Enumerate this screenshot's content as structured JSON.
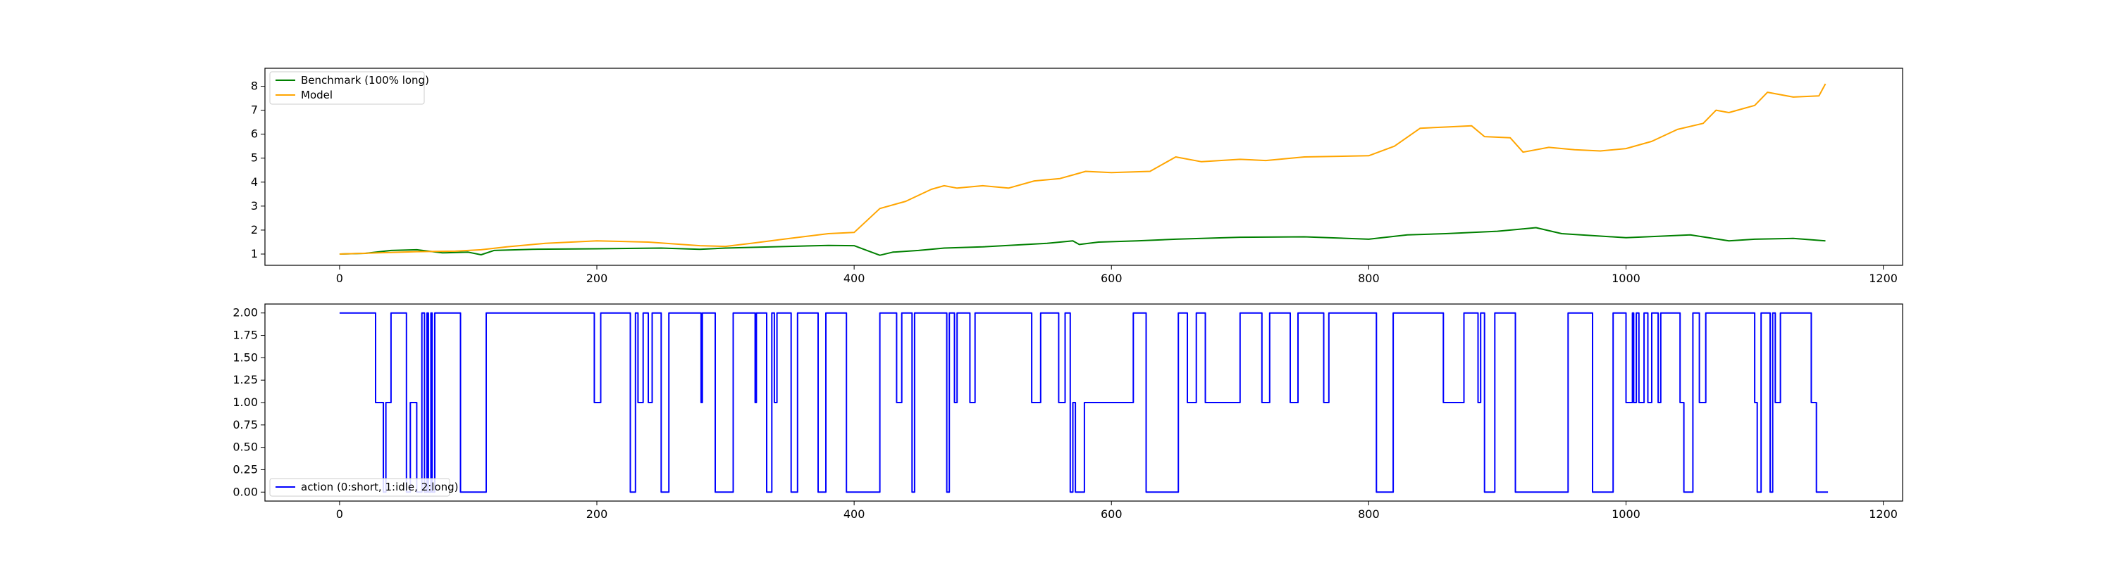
{
  "chart_data": [
    {
      "type": "line",
      "title": "",
      "xlabel": "",
      "ylabel": "",
      "xlim": [
        -58,
        1215
      ],
      "ylim": [
        0.53,
        8.75
      ],
      "xticks": [
        0,
        200,
        400,
        600,
        800,
        1000,
        1200
      ],
      "yticks": [
        1,
        2,
        3,
        4,
        5,
        6,
        7,
        8
      ],
      "grid": false,
      "legend_position": "upper-left",
      "series": [
        {
          "name": "Benchmark (100% long)",
          "color": "#008000",
          "points": [
            [
              0,
              1.0
            ],
            [
              20,
              1.03
            ],
            [
              40,
              1.15
            ],
            [
              60,
              1.18
            ],
            [
              80,
              1.05
            ],
            [
              100,
              1.08
            ],
            [
              110,
              0.97
            ],
            [
              120,
              1.15
            ],
            [
              150,
              1.2
            ],
            [
              200,
              1.22
            ],
            [
              250,
              1.25
            ],
            [
              280,
              1.2
            ],
            [
              300,
              1.25
            ],
            [
              320,
              1.28
            ],
            [
              350,
              1.32
            ],
            [
              380,
              1.36
            ],
            [
              400,
              1.35
            ],
            [
              410,
              1.15
            ],
            [
              420,
              0.95
            ],
            [
              430,
              1.08
            ],
            [
              450,
              1.15
            ],
            [
              470,
              1.25
            ],
            [
              500,
              1.3
            ],
            [
              550,
              1.45
            ],
            [
              570,
              1.55
            ],
            [
              575,
              1.4
            ],
            [
              590,
              1.5
            ],
            [
              620,
              1.55
            ],
            [
              650,
              1.62
            ],
            [
              700,
              1.7
            ],
            [
              750,
              1.72
            ],
            [
              800,
              1.62
            ],
            [
              830,
              1.8
            ],
            [
              860,
              1.85
            ],
            [
              900,
              1.95
            ],
            [
              920,
              2.05
            ],
            [
              930,
              2.1
            ],
            [
              950,
              1.85
            ],
            [
              1000,
              1.68
            ],
            [
              1030,
              1.75
            ],
            [
              1050,
              1.8
            ],
            [
              1080,
              1.55
            ],
            [
              1100,
              1.62
            ],
            [
              1130,
              1.65
            ],
            [
              1155,
              1.55
            ]
          ]
        },
        {
          "name": "Model",
          "color": "#ffa500",
          "points": [
            [
              0,
              1.0
            ],
            [
              30,
              1.05
            ],
            [
              60,
              1.1
            ],
            [
              90,
              1.12
            ],
            [
              110,
              1.18
            ],
            [
              130,
              1.3
            ],
            [
              160,
              1.45
            ],
            [
              200,
              1.55
            ],
            [
              240,
              1.5
            ],
            [
              280,
              1.35
            ],
            [
              300,
              1.32
            ],
            [
              320,
              1.45
            ],
            [
              350,
              1.65
            ],
            [
              380,
              1.85
            ],
            [
              400,
              1.9
            ],
            [
              410,
              2.4
            ],
            [
              420,
              2.9
            ],
            [
              440,
              3.2
            ],
            [
              460,
              3.7
            ],
            [
              470,
              3.85
            ],
            [
              480,
              3.75
            ],
            [
              500,
              3.85
            ],
            [
              520,
              3.75
            ],
            [
              540,
              4.05
            ],
            [
              560,
              4.15
            ],
            [
              570,
              4.3
            ],
            [
              580,
              4.45
            ],
            [
              600,
              4.4
            ],
            [
              630,
              4.45
            ],
            [
              650,
              5.05
            ],
            [
              670,
              4.85
            ],
            [
              700,
              4.95
            ],
            [
              720,
              4.9
            ],
            [
              750,
              5.05
            ],
            [
              800,
              5.1
            ],
            [
              820,
              5.5
            ],
            [
              840,
              6.25
            ],
            [
              860,
              6.3
            ],
            [
              880,
              6.35
            ],
            [
              890,
              5.9
            ],
            [
              910,
              5.85
            ],
            [
              920,
              5.25
            ],
            [
              940,
              5.45
            ],
            [
              960,
              5.35
            ],
            [
              980,
              5.3
            ],
            [
              1000,
              5.4
            ],
            [
              1020,
              5.7
            ],
            [
              1040,
              6.2
            ],
            [
              1060,
              6.45
            ],
            [
              1070,
              7.0
            ],
            [
              1080,
              6.9
            ],
            [
              1090,
              7.05
            ],
            [
              1100,
              7.2
            ],
            [
              1110,
              7.75
            ],
            [
              1130,
              7.55
            ],
            [
              1150,
              7.6
            ],
            [
              1155,
              8.1
            ]
          ]
        }
      ]
    },
    {
      "type": "line",
      "title": "",
      "xlabel": "",
      "ylabel": "",
      "xlim": [
        -58,
        1215
      ],
      "ylim": [
        -0.1,
        2.1
      ],
      "xticks": [
        0,
        200,
        400,
        600,
        800,
        1000,
        1200
      ],
      "yticks": [
        0.0,
        0.25,
        0.5,
        0.75,
        1.0,
        1.25,
        1.5,
        1.75,
        2.0
      ],
      "ytick_labels": [
        "0.00",
        "0.25",
        "0.50",
        "0.75",
        "1.00",
        "1.25",
        "1.50",
        "1.75",
        "2.00"
      ],
      "grid": false,
      "legend_position": "lower-left",
      "series": [
        {
          "name": "action (0:short, 1:idle, 2:long)",
          "color": "#0000ff",
          "segments": [
            [
              0,
              2
            ],
            [
              28,
              1
            ],
            [
              33,
              1
            ],
            [
              34,
              0
            ],
            [
              36,
              1
            ],
            [
              40,
              2
            ],
            [
              52,
              0
            ],
            [
              55,
              1
            ],
            [
              60,
              0
            ],
            [
              64,
              2
            ],
            [
              66,
              0
            ],
            [
              68,
              2
            ],
            [
              69,
              0
            ],
            [
              71,
              2
            ],
            [
              72,
              0
            ],
            [
              74,
              2
            ],
            [
              94,
              0
            ],
            [
              114,
              2
            ],
            [
              198,
              1
            ],
            [
              203,
              2
            ],
            [
              226,
              0
            ],
            [
              230,
              2
            ],
            [
              232,
              1
            ],
            [
              236,
              2
            ],
            [
              240,
              1
            ],
            [
              243,
              2
            ],
            [
              250,
              0
            ],
            [
              256,
              2
            ],
            [
              281,
              1
            ],
            [
              282,
              2
            ],
            [
              292,
              0
            ],
            [
              306,
              2
            ],
            [
              323,
              1
            ],
            [
              324,
              2
            ],
            [
              332,
              0
            ],
            [
              336,
              2
            ],
            [
              338,
              1
            ],
            [
              340,
              2
            ],
            [
              351,
              0
            ],
            [
              356,
              2
            ],
            [
              372,
              0
            ],
            [
              378,
              2
            ],
            [
              394,
              0
            ],
            [
              420,
              2
            ],
            [
              433,
              1
            ],
            [
              437,
              2
            ],
            [
              445,
              0
            ],
            [
              447,
              2
            ],
            [
              472,
              0
            ],
            [
              474,
              2
            ],
            [
              478,
              1
            ],
            [
              480,
              2
            ],
            [
              490,
              1
            ],
            [
              494,
              2
            ],
            [
              538,
              1
            ],
            [
              545,
              2
            ],
            [
              559,
              1
            ],
            [
              564,
              2
            ],
            [
              568,
              0
            ],
            [
              570,
              1
            ],
            [
              572,
              0
            ],
            [
              579,
              1
            ],
            [
              617,
              2
            ],
            [
              627,
              0
            ],
            [
              652,
              2
            ],
            [
              659,
              1
            ],
            [
              666,
              2
            ],
            [
              673,
              1
            ],
            [
              700,
              2
            ],
            [
              717,
              1
            ],
            [
              723,
              2
            ],
            [
              739,
              1
            ],
            [
              745,
              2
            ],
            [
              765,
              1
            ],
            [
              769,
              2
            ],
            [
              806,
              0
            ],
            [
              819,
              2
            ],
            [
              858,
              1
            ],
            [
              874,
              2
            ],
            [
              885,
              1
            ],
            [
              887,
              2
            ],
            [
              890,
              0
            ],
            [
              898,
              2
            ],
            [
              914,
              0
            ],
            [
              955,
              2
            ],
            [
              974,
              0
            ],
            [
              990,
              2
            ],
            [
              1000,
              1
            ],
            [
              1005,
              2
            ],
            [
              1006,
              1
            ],
            [
              1008,
              2
            ],
            [
              1010,
              1
            ],
            [
              1014,
              2
            ],
            [
              1017,
              1
            ],
            [
              1020,
              2
            ],
            [
              1025,
              1
            ],
            [
              1027,
              2
            ],
            [
              1042,
              1
            ],
            [
              1045,
              0
            ],
            [
              1047,
              0
            ],
            [
              1052,
              2
            ],
            [
              1057,
              1
            ],
            [
              1062,
              2
            ],
            [
              1100,
              1
            ],
            [
              1102,
              0
            ],
            [
              1105,
              2
            ],
            [
              1112,
              0
            ],
            [
              1114,
              2
            ],
            [
              1116,
              1
            ],
            [
              1120,
              2
            ],
            [
              1144,
              1
            ],
            [
              1148,
              0
            ],
            [
              1157,
              0
            ]
          ]
        }
      ]
    }
  ]
}
